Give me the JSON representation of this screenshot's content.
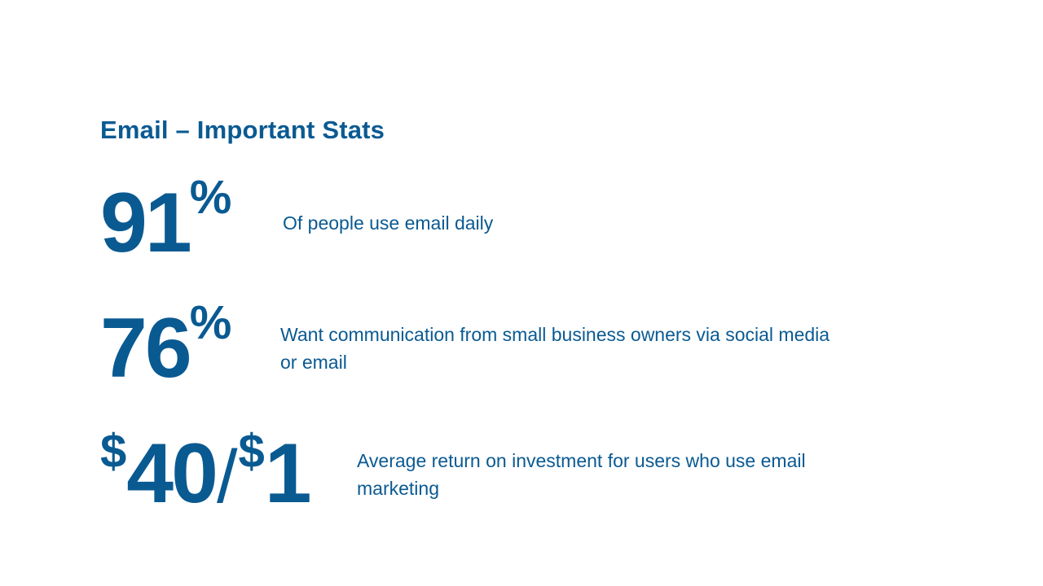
{
  "slide": {
    "title": "Email – Important Stats",
    "stats": [
      {
        "value": "91",
        "unit": "%",
        "description": "Of people use email daily"
      },
      {
        "value": "76",
        "unit": "%",
        "description": "Want communication from small business owners via social media or email"
      },
      {
        "prefix1": "$",
        "value1": "40",
        "separator": "/",
        "prefix2": "$",
        "value2": "1",
        "description": "Average return on investment for users who use email marketing"
      }
    ]
  },
  "colors": {
    "accent": "#0a5a92",
    "background": "#ffffff"
  }
}
